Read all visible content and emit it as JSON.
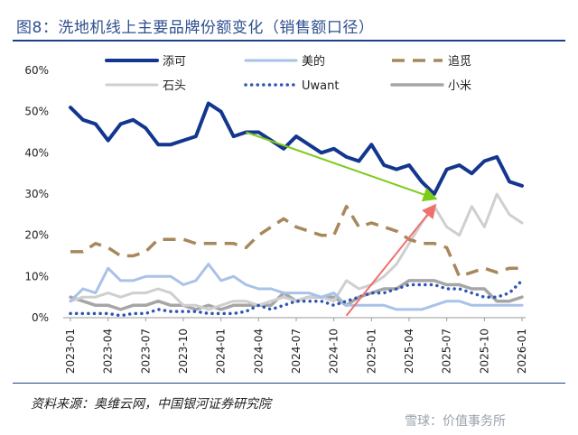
{
  "title": "图8：洗地机线上主要品牌份额变化（销售额口径）",
  "source": "资料来源：奥维云网，中国银河证券研究院",
  "watermark": "雪球：价值事务所",
  "chart_data": {
    "type": "line",
    "y_axis": {
      "min": 0,
      "max": 60,
      "step": 10,
      "unit": "%"
    },
    "x_ticks": [
      "2023-01",
      "2023-04",
      "2023-07",
      "2023-10",
      "2024-01",
      "2024-04",
      "2024-07",
      "2024-10",
      "2025-01",
      "2025-04",
      "2025-07",
      "2025-10",
      "2026-01"
    ],
    "n_points": 37,
    "legend": [
      {
        "name": "添可",
        "color": "#13368e",
        "style": "solid",
        "width": 4
      },
      {
        "name": "美的",
        "color": "#a9c2e8",
        "style": "solid",
        "width": 3
      },
      {
        "name": "追觅",
        "color": "#a8885a",
        "style": "dash",
        "width": 3.5
      },
      {
        "name": "石头",
        "color": "#cfcfcf",
        "style": "solid",
        "width": 3
      },
      {
        "name": "Uwant",
        "color": "#2f55b5",
        "style": "dot",
        "width": 3.5
      },
      {
        "name": "小米",
        "color": "#a6a6a6",
        "style": "solid",
        "width": 3.5
      }
    ],
    "series": [
      {
        "name": "添可",
        "values": [
          51,
          48,
          47,
          43,
          47,
          48,
          46,
          42,
          42,
          43,
          44,
          52,
          50,
          44,
          45,
          45,
          43,
          41,
          44,
          42,
          40,
          41,
          39,
          38,
          42,
          37,
          36,
          37,
          33,
          30,
          36,
          37,
          35,
          38,
          39,
          33,
          32
        ]
      },
      {
        "name": "美的",
        "values": [
          4,
          7,
          6,
          12,
          9,
          9,
          10,
          10,
          10,
          8,
          9,
          13,
          9,
          10,
          8,
          7,
          7,
          6,
          6,
          6,
          5,
          6,
          3,
          3,
          3,
          3,
          2,
          2,
          2,
          3,
          4,
          4,
          3,
          3,
          3,
          3,
          3
        ]
      },
      {
        "name": "追觅",
        "values": [
          16,
          16,
          18,
          17,
          15,
          15,
          16,
          19,
          19,
          19,
          18,
          18,
          18,
          18,
          17,
          20,
          22,
          24,
          22,
          21,
          20,
          20,
          27,
          22,
          23,
          22,
          21,
          19,
          18,
          18,
          17,
          10,
          11,
          12,
          11,
          12,
          12
        ]
      },
      {
        "name": "石头",
        "values": [
          4,
          5,
          5,
          6,
          5,
          6,
          6,
          7,
          6,
          3,
          3,
          2,
          3,
          4,
          4,
          3,
          4,
          5,
          4,
          5,
          5,
          4,
          9,
          7,
          8,
          10,
          13,
          18,
          23,
          27,
          22,
          20,
          27,
          22,
          30,
          25,
          23
        ]
      },
      {
        "name": "Uwant",
        "values": [
          1,
          1,
          1,
          1,
          0.5,
          1,
          1,
          2,
          1.5,
          1.5,
          1.5,
          1,
          1,
          1,
          1.5,
          3,
          2,
          3,
          4,
          4,
          4,
          3,
          4,
          5,
          6,
          6,
          7,
          8,
          8,
          8,
          7,
          7,
          6,
          5,
          5,
          6,
          9
        ]
      },
      {
        "name": "小米",
        "values": [
          5,
          4,
          3,
          3,
          2,
          3,
          3,
          4,
          3,
          3,
          2,
          3,
          2,
          3,
          3,
          3,
          3,
          6,
          4,
          5,
          5,
          5,
          3,
          5,
          6,
          7,
          7,
          9,
          9,
          9,
          8,
          8,
          7,
          7,
          4,
          4,
          5
        ]
      }
    ],
    "arrows": [
      {
        "color": "#7ecb1a",
        "from": {
          "x": 14,
          "y": 45
        },
        "to": {
          "x": 29,
          "y": 29
        }
      },
      {
        "color": "#f07070",
        "from": {
          "x": 22,
          "y": 0.5
        },
        "to": {
          "x": 29,
          "y": 27
        }
      }
    ]
  }
}
